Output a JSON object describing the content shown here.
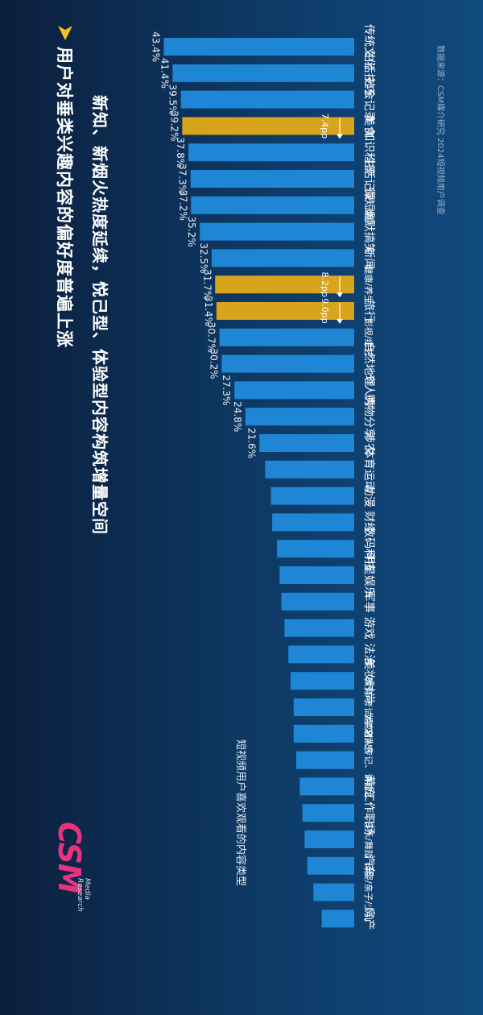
{
  "header": {
    "title": "用户对垂类兴趣内容的偏好度普遍上涨",
    "subtitle": "新知、新烟火热度延续，悦己型、体验型内容构筑增量空间"
  },
  "source": "数据来源：CSM媒介研究 2024短视频用户调查",
  "logo": {
    "brand": "CSM",
    "sub": "Media Research"
  },
  "legend": {
    "label": "短视频用户喜欢观看的内容类型"
  },
  "colors": {
    "bar": "#1f86d6",
    "highlight": "#d8a41c",
    "background": "#0e3a66"
  },
  "icons": {
    "title_marker": "triangle-arrow-icon"
  },
  "chart_data": {
    "type": "bar",
    "categories": [
      "传统文化",
      "生活技巧",
      "社会记录",
      "美食",
      "知识科普",
      "生活记录",
      "微短剧",
      "幽默搞笑",
      "新闻",
      "健康/养生",
      "旅行",
      "影视/综艺",
      "自然地理",
      "个人秀",
      "购物分享",
      "涉农",
      "体育运动",
      "动漫",
      "财经",
      "数码科技",
      "明星娱乐",
      "军事",
      "游戏",
      "法治",
      "美妆时尚",
      "教育/考试/学习",
      "婚恋/情感",
      "名人传记、讲座",
      "萌宠",
      "工作职场",
      "音乐/舞蹈",
      "汽车",
      "母婴/亲子/少儿",
      "房产"
    ],
    "series": [
      {
        "values": [
          43.4,
          41.4,
          39.5,
          39.2,
          37.8,
          37.3,
          37.2,
          35.2,
          32.5,
          31.7,
          31.4,
          30.7,
          30.2,
          27.3,
          24.8,
          21.6,
          20.3,
          19.0,
          18.7,
          17.6,
          17.0,
          16.6,
          15.9,
          15.0,
          14.5,
          13.8,
          13.8,
          13.2,
          12.4,
          11.8,
          11.3,
          10.7,
          9.3,
          7.4
        ]
      }
    ],
    "labels": [
      {
        "category": "传统文化",
        "text": "43.4%"
      },
      {
        "category": "生活技巧",
        "text": "41.4%"
      },
      {
        "category": "社会记录",
        "text": "39.5%"
      },
      {
        "category": "美食",
        "text": "39.2%"
      },
      {
        "category": "知识科普",
        "text": "37.8%"
      },
      {
        "category": "生活记录",
        "text": "37.3%"
      },
      {
        "category": "微短剧",
        "text": "37.2%"
      },
      {
        "category": "幽默搞笑",
        "text": "35.2%"
      },
      {
        "category": "新闻",
        "text": "32.5%"
      },
      {
        "category": "健康/养生",
        "text": "31.7%"
      },
      {
        "category": "旅行",
        "text": "31.4%"
      },
      {
        "category": "影视/综艺",
        "text": "30.7%"
      },
      {
        "category": "自然地理",
        "text": "30.2%"
      },
      {
        "category": "个人秀",
        "text": "27.3%"
      },
      {
        "category": "购物分享",
        "text": "24.8%"
      },
      {
        "category": "涉农",
        "text": "21.6%"
      }
    ],
    "highlights": [
      {
        "category": "美食",
        "text": "7.4pp"
      },
      {
        "category": "健康/养生",
        "text": "8.2pp"
      },
      {
        "category": "旅行",
        "text": "9.0pp"
      }
    ]
  }
}
